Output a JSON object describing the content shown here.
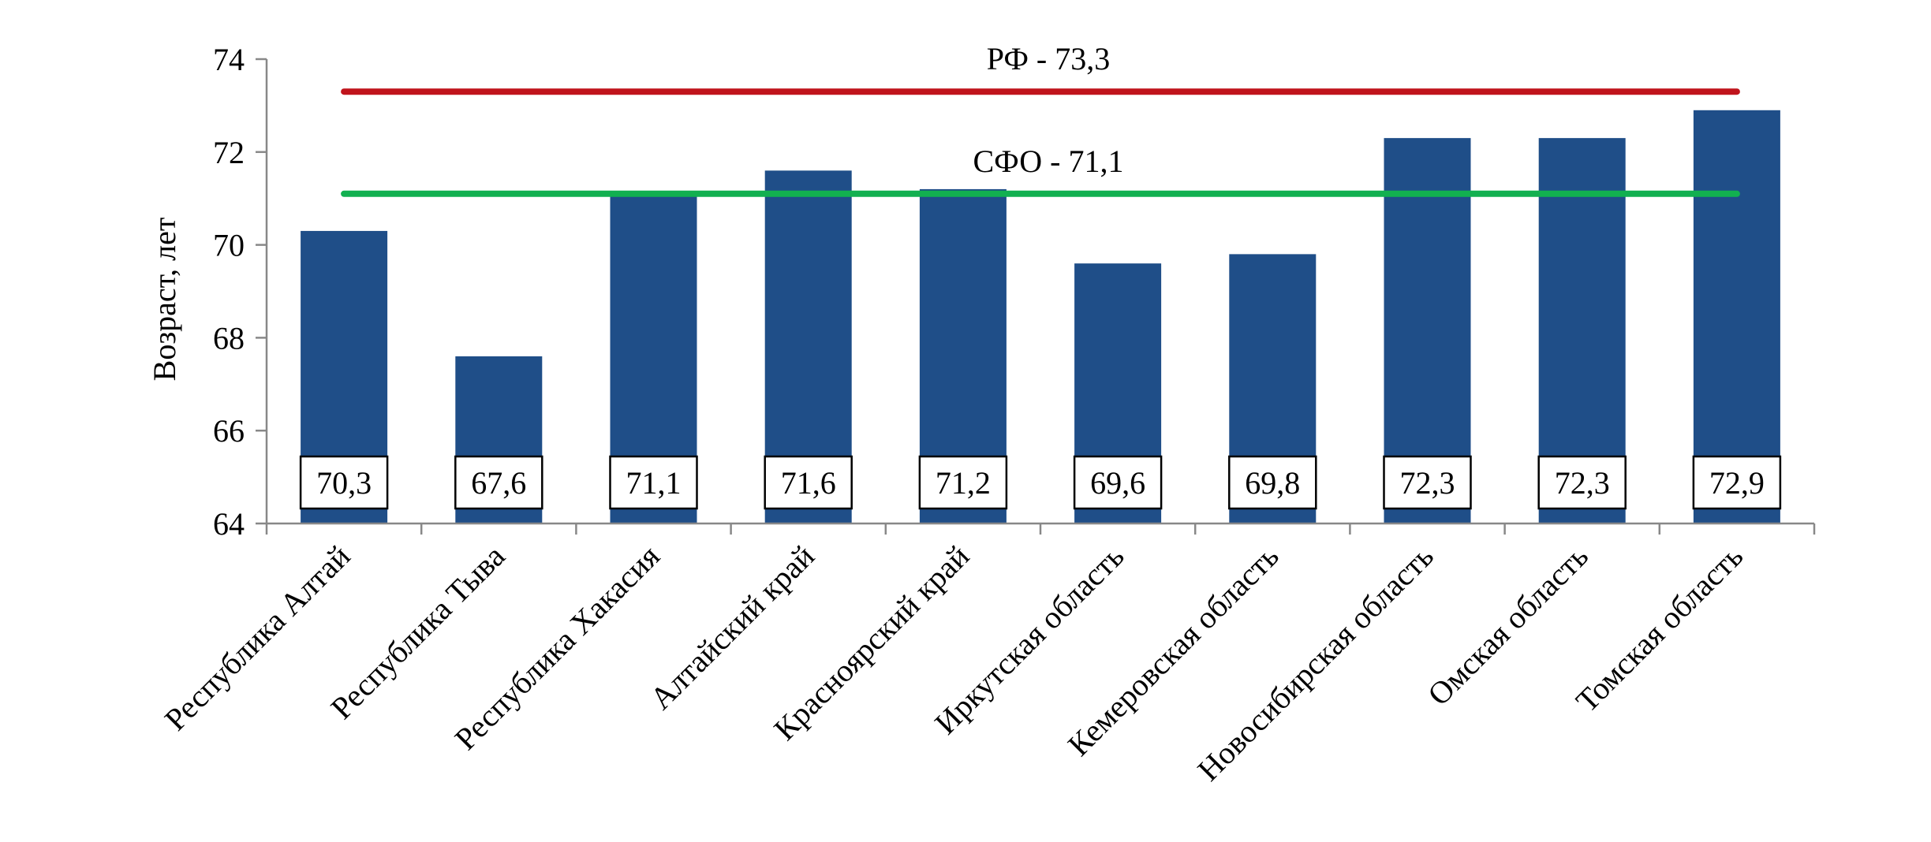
{
  "chart_data": {
    "type": "bar",
    "title": "",
    "xlabel": "",
    "ylabel": "Возраст, лет",
    "ylim": [
      64,
      74
    ],
    "yticks": [
      64,
      66,
      68,
      70,
      72,
      74
    ],
    "grid": false,
    "categories": [
      "Республика Алтай",
      "Республика Тыва",
      "Республика Хакасия",
      "Алтайский край",
      "Красноярский край",
      "Иркутская область",
      "Кемеровская область",
      "Новосибирская область",
      "Омская область",
      "Томская область"
    ],
    "values": [
      70.3,
      67.6,
      71.1,
      71.6,
      71.2,
      69.6,
      69.8,
      72.3,
      72.3,
      72.9
    ],
    "data_labels": [
      "70,3",
      "67,6",
      "71,1",
      "71,6",
      "71,2",
      "69,6",
      "69,8",
      "72,3",
      "72,3",
      "72,9"
    ],
    "reference_lines": [
      {
        "label": "РФ - 73,3",
        "value": 73.3,
        "color": "#c0141c"
      },
      {
        "label": "СФО - 71,1",
        "value": 71.1,
        "color": "#12b050"
      }
    ],
    "colors": {
      "bar": "#1f4e88",
      "axis": "#888888"
    }
  }
}
